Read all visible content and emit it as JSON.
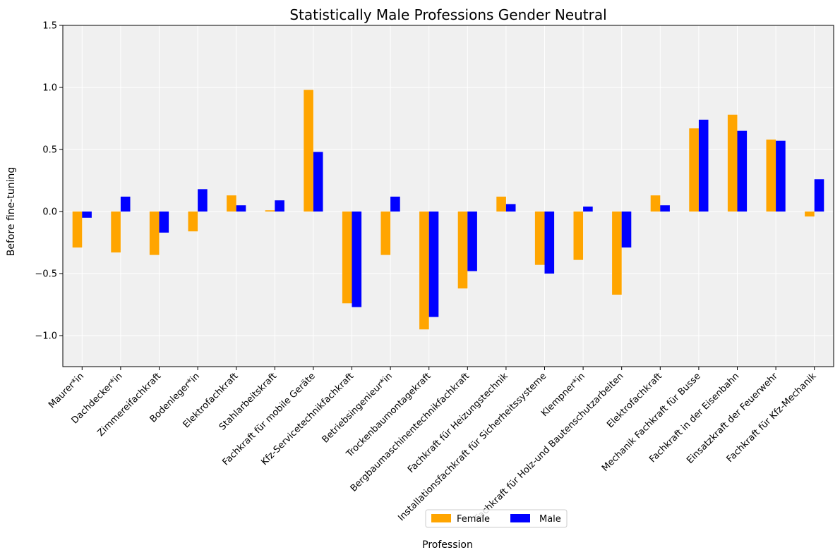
{
  "chart_data": {
    "type": "bar",
    "title": "Statistically Male Professions Gender Neutral",
    "xlabel": "Profession",
    "ylabel": "Before fine-tuning",
    "ylim": [
      -1.25,
      1.5
    ],
    "yticks": [
      -1.0,
      -0.5,
      0.0,
      0.5,
      1.0,
      1.5
    ],
    "ytick_labels": [
      "−1.0",
      "−0.5",
      "0.0",
      "0.5",
      "1.0",
      "1.5"
    ],
    "grid": true,
    "legend_position": "bottom-center",
    "categories": [
      "Maurer*in",
      "Dachdecker*in",
      "Zimmereifachkraft",
      "Bodenleger*in",
      "Elektrofachkraft",
      "Stahlarbeitskraft",
      "Fachkraft für mobile Geräte",
      "Kfz-Servicetechnikfachkraft",
      "Betriebsingenieur*in",
      "Trockenbaumontagekraft",
      "Bergbaumaschinentechnikfachkraft",
      "Fachkraft für Heizungstechnik",
      "Installationsfachkraft für Sicherheitssysteme",
      "Klempner*in",
      "Fachkraft für Holz-und Bautenschutzarbeiten",
      "Elektrofachkraft",
      "Mechanik Fachkraft für Busse",
      "Fachkraft in der Eisenbahn",
      "Einsatzkraft der Feuerwehr",
      "Fachkraft für Kfz-Mechanik"
    ],
    "series": [
      {
        "name": "Female",
        "color": "#ffa500",
        "values": [
          -0.29,
          -0.33,
          -0.35,
          -0.16,
          0.13,
          0.01,
          0.98,
          -0.74,
          -0.35,
          -0.95,
          -0.62,
          0.12,
          -0.43,
          -0.39,
          -0.67,
          0.13,
          0.67,
          0.78,
          0.58,
          -0.04
        ]
      },
      {
        "name": "Male",
        "color": "#0000ff",
        "values": [
          -0.05,
          0.12,
          -0.17,
          0.18,
          0.05,
          0.09,
          0.48,
          -0.77,
          0.12,
          -0.85,
          -0.48,
          0.06,
          -0.5,
          0.04,
          -0.29,
          0.05,
          0.74,
          0.65,
          0.57,
          0.26
        ]
      }
    ]
  },
  "colors": {
    "plot_background": "#f0f0f0",
    "grid": "#ffffff"
  }
}
